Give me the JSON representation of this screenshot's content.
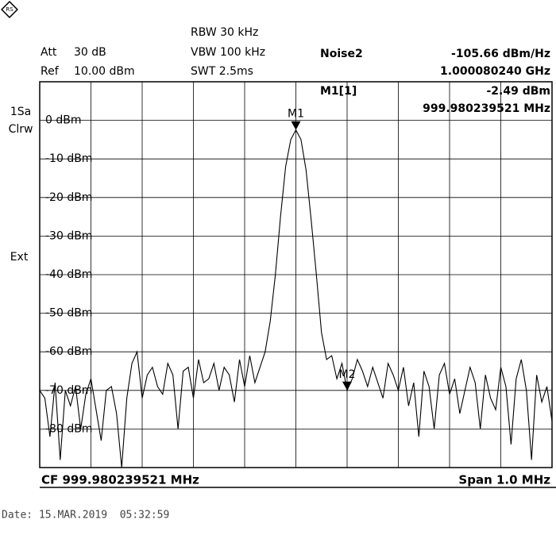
{
  "header": {
    "att_label": "Att",
    "att": "30 dB",
    "ref_label": "Ref",
    "ref": "10.00 dBm",
    "rbw": "RBW 30 kHz",
    "vbw": "VBW 100 kHz",
    "swt": "SWT 2.5ms",
    "noise_label": "Noise2",
    "noise_value": "-105.66 dBm/Hz",
    "noise_freq": "1.000080240 GHz",
    "m1_label": "M1[1]",
    "m1_value": "-2.49 dBm",
    "m1_freq": "999.980239521 MHz"
  },
  "side": {
    "count": "1Sa",
    "mode": "Clrw",
    "trigger": "Ext"
  },
  "footer": {
    "cf": "CF 999.980239521 MHz",
    "span": "Span 1.0 MHz",
    "date": "Date: 15.MAR.2019  05:32:59"
  },
  "chart_data": {
    "type": "line",
    "color": "#000000",
    "values": [
      -70,
      -72,
      -82,
      -68,
      -88,
      -70,
      -74,
      -69,
      -80,
      -71,
      -67,
      -75,
      -83,
      -70,
      -69,
      -76,
      -90,
      -72,
      -63,
      -60,
      -72,
      -66,
      -64,
      -69,
      -71,
      -63,
      -66,
      -80,
      -65,
      -64,
      -72,
      -62,
      -68,
      -67,
      -63,
      -70,
      -64,
      -66,
      -73,
      -62,
      -69,
      -61,
      -68,
      -64,
      -60,
      -52,
      -40,
      -25,
      -12,
      -5,
      -2.49,
      -5,
      -13,
      -26,
      -40,
      -55,
      -62,
      -61,
      -67,
      -63,
      -70,
      -67,
      -62,
      -65,
      -69,
      -64,
      -68,
      -72,
      -63,
      -66,
      -70,
      -64,
      -74,
      -68,
      -82,
      -65,
      -69,
      -80,
      -66,
      -63,
      -71,
      -67,
      -76,
      -70,
      -64,
      -68,
      -80,
      -66,
      -72,
      -75,
      -64,
      -69,
      -84,
      -67,
      -62,
      -70,
      -88,
      -66,
      -73,
      -69,
      -78
    ],
    "ylim": [
      -90,
      10
    ],
    "yticks": [
      {
        "value": 0,
        "label": "0 dBm"
      },
      {
        "value": -10,
        "label": "-10 dBm"
      },
      {
        "value": -20,
        "label": "-20 dBm"
      },
      {
        "value": -30,
        "label": "-30 dBm"
      },
      {
        "value": -40,
        "label": "-40 dBm"
      },
      {
        "value": -50,
        "label": "-50 dBm"
      },
      {
        "value": -60,
        "label": "-60 dBm"
      },
      {
        "value": -70,
        "label": "-70 dBm"
      },
      {
        "value": -80,
        "label": "-80 dBm"
      }
    ],
    "markers": [
      {
        "label": "M1",
        "point": 50
      },
      {
        "label": "M2",
        "point": 60
      }
    ],
    "grid": true
  }
}
